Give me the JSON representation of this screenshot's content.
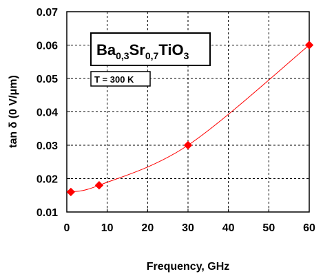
{
  "chart_data": {
    "type": "line",
    "title": "",
    "xlabel": "Frequency, GHz",
    "ylabel": "tan δ (0 V/μm)",
    "xlim": [
      0,
      60
    ],
    "ylim": [
      0.01,
      0.07
    ],
    "x_ticks": [
      "0",
      "10",
      "20",
      "30",
      "40",
      "50",
      "60"
    ],
    "y_ticks": [
      "0.01",
      "0.02",
      "0.03",
      "0.04",
      "0.05",
      "0.06",
      "0.07"
    ],
    "grid": true,
    "series": [
      {
        "x": [
          1,
          8,
          30,
          60
        ],
        "y": [
          0.016,
          0.018,
          0.03,
          0.06
        ],
        "color": "#ff0000",
        "marker": "diamond"
      }
    ],
    "annotations": {
      "material": {
        "parts": [
          "Ba",
          "0,3",
          "Sr",
          "0,7",
          "TiO",
          "3"
        ]
      },
      "temperature": "T = 300 K"
    }
  }
}
